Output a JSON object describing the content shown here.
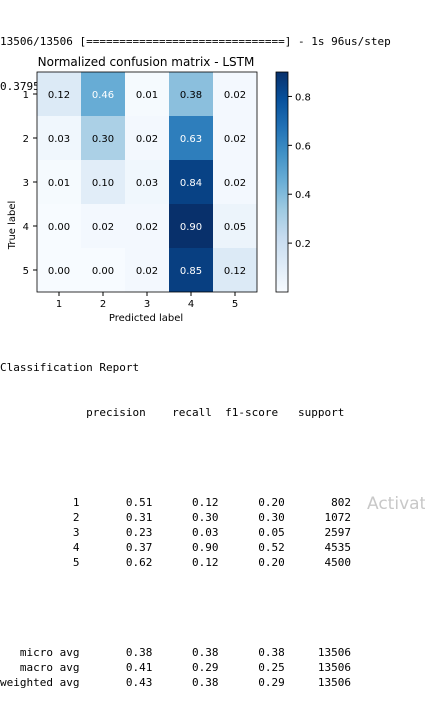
{
  "log": {
    "progress_line": "13506/13506 [==============================] - 1s 96us/step",
    "score_line": "0.3795350214719384"
  },
  "chart_data": {
    "type": "heatmap",
    "title": "Normalized confusion matrix - LSTM",
    "xlabel": "Predicted label",
    "ylabel": "True label",
    "x_categories": [
      "1",
      "2",
      "3",
      "4",
      "5"
    ],
    "y_categories": [
      "1",
      "2",
      "3",
      "4",
      "5"
    ],
    "values": [
      [
        0.12,
        0.46,
        0.01,
        0.38,
        0.02
      ],
      [
        0.03,
        0.3,
        0.02,
        0.63,
        0.02
      ],
      [
        0.01,
        0.1,
        0.03,
        0.84,
        0.02
      ],
      [
        0.0,
        0.02,
        0.02,
        0.9,
        0.05
      ],
      [
        0.0,
        0.0,
        0.02,
        0.85,
        0.12
      ]
    ],
    "value_labels": [
      [
        "0.12",
        "0.46",
        "0.01",
        "0.38",
        "0.02"
      ],
      [
        "0.03",
        "0.30",
        "0.02",
        "0.63",
        "0.02"
      ],
      [
        "0.01",
        "0.10",
        "0.03",
        "0.84",
        "0.02"
      ],
      [
        "0.00",
        "0.02",
        "0.02",
        "0.90",
        "0.05"
      ],
      [
        "0.00",
        "0.00",
        "0.02",
        "0.85",
        "0.12"
      ]
    ],
    "colormap": "Blues",
    "color_range": [
      0,
      0.9
    ],
    "colorbar_ticks": [
      "0.2",
      "0.4",
      "0.6",
      "0.8"
    ],
    "colorbar_tick_values": [
      0.2,
      0.4,
      0.6,
      0.8
    ],
    "grid": false,
    "colors": {
      "light": "#f7fbff",
      "dark": "#08306b"
    }
  },
  "report": {
    "title": "Classification Report",
    "header": "             precision    recall  f1-score   support",
    "rows": [
      "           1       0.51      0.12      0.20       802",
      "           2       0.31      0.30      0.30      1072",
      "           3       0.23      0.03      0.05      2597",
      "           4       0.37      0.90      0.52      4535",
      "           5       0.62      0.12      0.20      4500"
    ],
    "avg_rows": [
      "   micro avg       0.38      0.38      0.38     13506",
      "   macro avg       0.41      0.29      0.25     13506",
      "weighted avg       0.43      0.38      0.29     13506"
    ]
  },
  "watermark": "Activat"
}
